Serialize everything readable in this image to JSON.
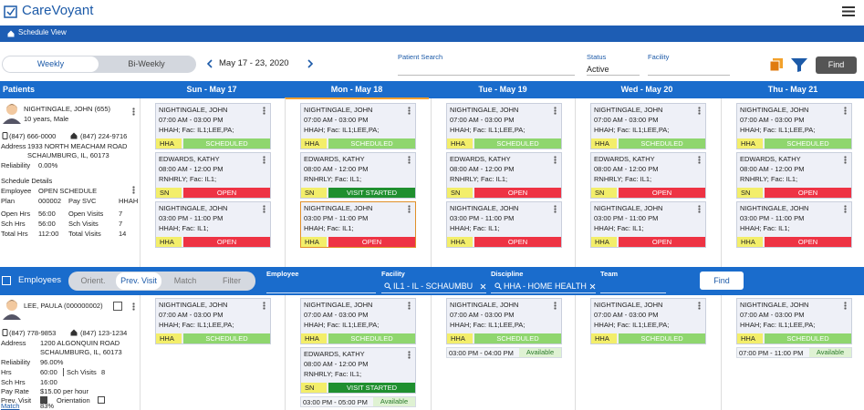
{
  "header": {
    "app_title": "CareVoyant",
    "nav": "Schedule View"
  },
  "toolbar": {
    "view_tabs": [
      "Weekly",
      "Bi-Weekly"
    ],
    "active_view": 0,
    "date_range": "May 17 - 23, 2020",
    "patient_search_label": "Patient Search",
    "status_label": "Status",
    "status_value": "Active",
    "facility_label": "Facility",
    "find": "Find"
  },
  "patients_header": "Patients",
  "days": [
    "Sun - May 17",
    "Mon - May 18",
    "Tue - May 19",
    "Wed - May 20",
    "Thu - May 21"
  ],
  "selected_day": 1,
  "patient": {
    "name": "NIGHTINGALE, JOHN (655)",
    "age": "10 years, Male",
    "phone1": "(847) 666-0000",
    "phone2": "(847) 224-9716",
    "address_label": "Address",
    "address1": "1933 NORTH MEACHAM ROAD",
    "address2": "SCHAUMBURG, IL, 60173",
    "reliability_label": "Reliability",
    "reliability": "0.00%",
    "schedule_details": "Schedule Details",
    "rows": [
      [
        "Employee",
        "OPEN SCHEDULE"
      ],
      [
        "Plan",
        "000002",
        "Pay SVC",
        "HHAH"
      ],
      [
        "Open Hrs",
        "56:00",
        "Open Visits",
        "7"
      ],
      [
        "Sch Hrs",
        "56:00",
        "Sch Visits",
        "7"
      ],
      [
        "Total Hrs",
        "112:00",
        "Total Visits",
        "14"
      ]
    ]
  },
  "patient_schedule": [
    {
      "visits": [
        {
          "name": "NIGHTINGALE, JOHN",
          "time": "07:00 AM - 03:00 PM",
          "info": "HHAH; Fac: IL1;LEE,PA;",
          "discipline": "HHA",
          "status": "SCHEDULED",
          "status_color": "#8fd66e"
        },
        {
          "name": "EDWARDS, KATHY",
          "time": "08:00 AM - 12:00 PM",
          "info": "RNHRLY; Fac: IL1;",
          "discipline": "SN",
          "status": "OPEN",
          "status_color": "#ee3344"
        },
        {
          "name": "NIGHTINGALE, JOHN",
          "time": "03:00 PM - 11:00 PM",
          "info": "HHAH; Fac: IL1;",
          "discipline": "HHA",
          "status": "OPEN",
          "status_color": "#ee3344"
        }
      ]
    },
    {
      "visits": [
        {
          "name": "NIGHTINGALE, JOHN",
          "time": "07:00 AM - 03:00 PM",
          "info": "HHAH; Fac: IL1;LEE,PA;",
          "discipline": "HHA",
          "status": "SCHEDULED",
          "status_color": "#8fd66e"
        },
        {
          "name": "EDWARDS, KATHY",
          "time": "08:00 AM - 12:00 PM",
          "info": "RNHRLY; Fac: IL1;",
          "discipline": "SN",
          "status": "VISIT STARTED",
          "status_color": "#1f8f2f"
        },
        {
          "name": "NIGHTINGALE, JOHN",
          "time": "03:00 PM - 11:00 PM",
          "info": "HHAH; Fac: IL1;",
          "discipline": "HHA",
          "status": "OPEN",
          "status_color": "#ee3344",
          "selected": true
        }
      ]
    },
    {
      "visits": [
        {
          "name": "NIGHTINGALE, JOHN",
          "time": "07:00 AM - 03:00 PM",
          "info": "HHAH; Fac: IL1;LEE,PA;",
          "discipline": "HHA",
          "status": "SCHEDULED",
          "status_color": "#8fd66e"
        },
        {
          "name": "EDWARDS, KATHY",
          "time": "08:00 AM - 12:00 PM",
          "info": "RNHRLY; Fac: IL1;",
          "discipline": "SN",
          "status": "OPEN",
          "status_color": "#ee3344"
        },
        {
          "name": "NIGHTINGALE, JOHN",
          "time": "03:00 PM - 11:00 PM",
          "info": "HHAH; Fac: IL1;",
          "discipline": "HHA",
          "status": "OPEN",
          "status_color": "#ee3344"
        }
      ]
    },
    {
      "visits": [
        {
          "name": "NIGHTINGALE, JOHN",
          "time": "07:00 AM - 03:00 PM",
          "info": "HHAH; Fac: IL1;LEE,PA;",
          "discipline": "HHA",
          "status": "SCHEDULED",
          "status_color": "#8fd66e"
        },
        {
          "name": "EDWARDS, KATHY",
          "time": "08:00 AM - 12:00 PM",
          "info": "RNHRLY; Fac: IL1;",
          "discipline": "SN",
          "status": "OPEN",
          "status_color": "#ee3344"
        },
        {
          "name": "NIGHTINGALE, JOHN",
          "time": "03:00 PM - 11:00 PM",
          "info": "HHAH; Fac: IL1;",
          "discipline": "HHA",
          "status": "OPEN",
          "status_color": "#ee3344"
        }
      ]
    },
    {
      "visits": [
        {
          "name": "NIGHTINGALE, JOHN",
          "time": "07:00 AM - 03:00 PM",
          "info": "HHAH; Fac: IL1;LEE,PA;",
          "discipline": "HHA",
          "status": "SCHEDULED",
          "status_color": "#8fd66e"
        },
        {
          "name": "EDWARDS, KATHY",
          "time": "08:00 AM - 12:00 PM",
          "info": "RNHRLY; Fac: IL1;",
          "discipline": "SN",
          "status": "OPEN",
          "status_color": "#ee3344"
        },
        {
          "name": "NIGHTINGALE, JOHN",
          "time": "03:00 PM - 11:00 PM",
          "info": "HHAH; Fac: IL1;",
          "discipline": "HHA",
          "status": "OPEN",
          "status_color": "#ee3344"
        }
      ]
    }
  ],
  "employee_bar": {
    "label": "Employees",
    "tabs": [
      "Orient.",
      "Prev. Visit",
      "Match",
      "Filter"
    ],
    "active_tab": 1,
    "employee_label": "Employee",
    "facility_label": "Facility",
    "facility_value": "IL1 - IL - SCHAUMBU",
    "discipline_label": "Discipline",
    "discipline_value": "HHA - HOME HEALTH",
    "team_label": "Team",
    "find": "Find"
  },
  "employee": {
    "name": "LEE, PAULA (000000002)",
    "phone1": "(847) 778-9853",
    "phone2": "(847) 123-1234",
    "address_label": "Address",
    "address1": "1200 ALGONQUIN ROAD",
    "address2": "SCHAUMBURG, IL, 60173",
    "rows": [
      [
        "Reliability",
        "96.00%"
      ],
      [
        "Hrs",
        "60:00",
        "Sch Visits",
        "8"
      ],
      [
        "Sch Hrs",
        "16:00"
      ],
      [
        "Pay Rate",
        "$15.00 per hour"
      ]
    ],
    "prev_visit_label": "Prev. Visit",
    "orientation_label": "Orientation",
    "match_label": "Match",
    "match_value": "83%"
  },
  "employee_schedule": [
    {
      "visits": [
        {
          "name": "NIGHTINGALE, JOHN",
          "time": "07:00 AM - 03:00 PM",
          "info": "HHAH; Fac: IL1;LEE,PA;",
          "discipline": "HHA",
          "status": "SCHEDULED",
          "status_color": "#8fd66e"
        }
      ]
    },
    {
      "visits": [
        {
          "name": "NIGHTINGALE, JOHN",
          "time": "07:00 AM - 03:00 PM",
          "info": "HHAH; Fac: IL1;LEE,PA;",
          "discipline": "HHA",
          "status": "SCHEDULED",
          "status_color": "#8fd66e"
        },
        {
          "name": "EDWARDS, KATHY",
          "time": "08:00 AM - 12:00 PM",
          "info": "RNHRLY; Fac: IL1;",
          "discipline": "SN",
          "status": "VISIT STARTED",
          "status_color": "#1f8f2f"
        }
      ],
      "availability": {
        "time": "03:00 PM - 05:00 PM",
        "label": "Available"
      }
    },
    {
      "visits": [
        {
          "name": "NIGHTINGALE, JOHN",
          "time": "07:00 AM - 03:00 PM",
          "info": "HHAH; Fac: IL1;LEE,PA;",
          "discipline": "HHA",
          "status": "SCHEDULED",
          "status_color": "#8fd66e"
        }
      ],
      "availability": {
        "time": "03:00 PM - 04:00 PM",
        "label": "Available"
      }
    },
    {
      "visits": [
        {
          "name": "NIGHTINGALE, JOHN",
          "time": "07:00 AM - 03:00 PM",
          "info": "HHAH; Fac: IL1;LEE,PA;",
          "discipline": "HHA",
          "status": "SCHEDULED",
          "status_color": "#8fd66e"
        }
      ]
    },
    {
      "visits": [
        {
          "name": "NIGHTINGALE, JOHN",
          "time": "07:00 AM - 03:00 PM",
          "info": "HHAH; Fac: IL1;LEE,PA;",
          "discipline": "HHA",
          "status": "SCHEDULED",
          "status_color": "#8fd66e"
        }
      ],
      "availability": {
        "time": "07:00 PM - 11:00 PM",
        "label": "Available"
      }
    }
  ]
}
